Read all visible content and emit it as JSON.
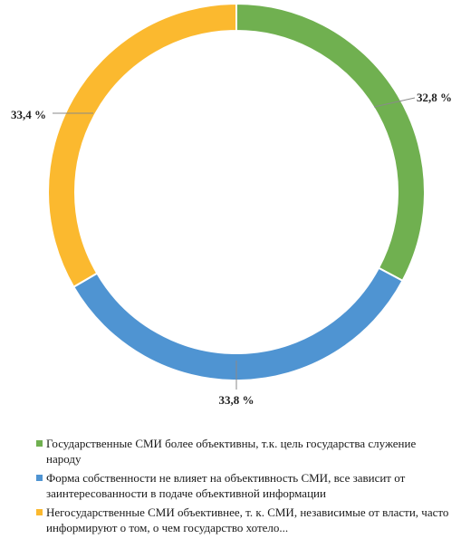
{
  "chart_data": {
    "type": "pie",
    "donut": true,
    "legend_position": "bottom",
    "slices": [
      {
        "label": "Государственные СМИ более объективны, т.к. цель государства служение народу",
        "value": 32.8,
        "display": "32,8 %",
        "color": "#70b050"
      },
      {
        "label": "Форма собственности не влияет на объективность СМИ, все зависит от заинтересованности в подаче объективной информации",
        "value": 33.8,
        "display": "33,8 %",
        "color": "#4f94d2"
      },
      {
        "label": "Негосударственные СМИ объективнее, т. к. СМИ, независимые от власти, часто информируют о том, о чем государство хотело...",
        "value": 33.4,
        "display": "33,4 %",
        "color": "#fbb92f"
      }
    ]
  }
}
